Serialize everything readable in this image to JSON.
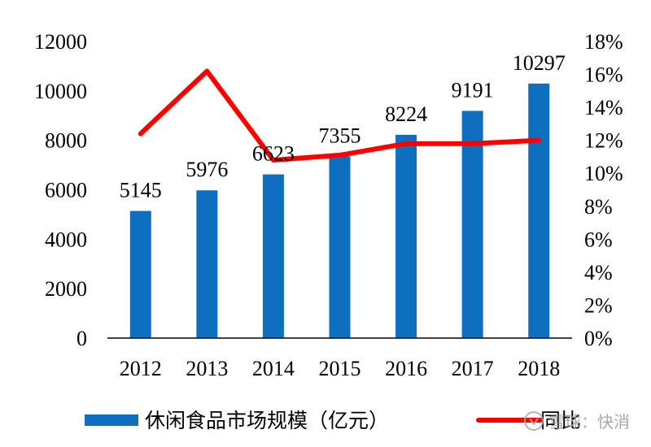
{
  "chart_data": {
    "type": "bar",
    "categories": [
      "2012",
      "2013",
      "2014",
      "2015",
      "2016",
      "2017",
      "2018"
    ],
    "series": [
      {
        "name": "休闲食品市场规模（亿元）",
        "type": "bar",
        "axis": "left",
        "color": "#0e6fc1",
        "values": [
          5145,
          5976,
          6623,
          7355,
          8224,
          9191,
          10297
        ],
        "labels": [
          "5145",
          "5976",
          "6623",
          "7355",
          "8224",
          "9191",
          "10297"
        ]
      },
      {
        "name": "同比",
        "type": "line",
        "axis": "right",
        "color": "#ff0000",
        "values": [
          12.4,
          16.2,
          10.8,
          11.1,
          11.8,
          11.8,
          12.0
        ]
      }
    ],
    "y_left": {
      "ylim": [
        0,
        12000
      ],
      "ticks": [
        "0",
        "2000",
        "4000",
        "6000",
        "8000",
        "10000",
        "12000"
      ]
    },
    "y_right": {
      "ylim": [
        0,
        18
      ],
      "ticks": [
        "0%",
        "2%",
        "4%",
        "6%",
        "8%",
        "10%",
        "12%",
        "14%",
        "16%",
        "18%"
      ]
    },
    "grid": false,
    "legend_position": "bottom"
  },
  "watermark": {
    "text": "雪球：快消",
    "icon": "snowball-logo-icon"
  }
}
